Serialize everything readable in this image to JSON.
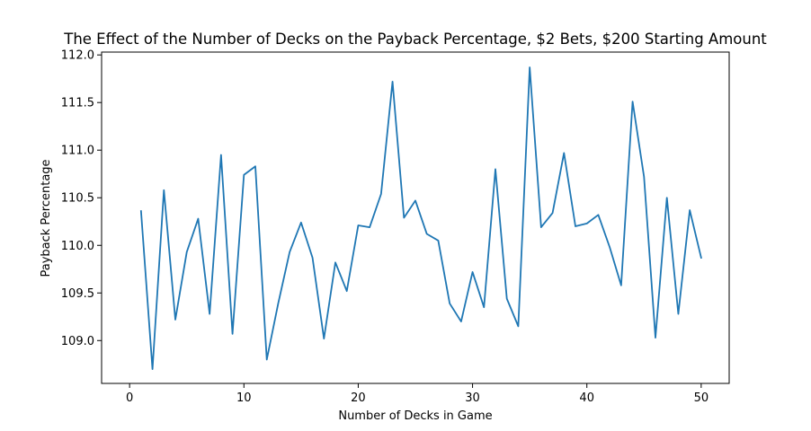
{
  "chart_data": {
    "type": "line",
    "title": "The Effect of the Number of Decks on the Payback Percentage, $2 Bets, $200 Starting Amount",
    "xlabel": "Number of Decks in Game",
    "ylabel": "Payback Percentage",
    "xlim": [
      -2.45,
      52.45
    ],
    "ylim": [
      108.55,
      112.03
    ],
    "xticks": [
      0,
      10,
      20,
      30,
      40,
      50
    ],
    "yticks": [
      109.0,
      109.5,
      110.0,
      110.5,
      111.0,
      111.5,
      112.0
    ],
    "grid": false,
    "line_color": "#1f77b4",
    "series": [
      {
        "x": [
          1,
          2,
          3,
          4,
          5,
          6,
          7,
          8,
          9,
          10,
          11,
          12,
          13,
          14,
          15,
          16,
          17,
          18,
          19,
          20,
          21,
          22,
          23,
          24,
          25,
          26,
          27,
          28,
          29,
          30,
          31,
          32,
          33,
          34,
          35,
          36,
          37,
          38,
          39,
          40,
          41,
          42,
          43,
          44,
          45,
          46,
          47,
          48,
          49,
          50
        ],
        "values": [
          110.36,
          108.7,
          110.58,
          109.22,
          109.93,
          110.28,
          109.28,
          110.95,
          109.07,
          110.74,
          110.83,
          108.8,
          109.39,
          109.93,
          110.24,
          109.87,
          109.02,
          109.82,
          109.52,
          110.21,
          110.19,
          110.54,
          111.72,
          110.29,
          110.47,
          110.12,
          110.05,
          109.39,
          109.2,
          109.72,
          109.35,
          110.8,
          109.44,
          109.15,
          111.87,
          110.19,
          110.34,
          110.97,
          110.2,
          110.23,
          110.32,
          109.98,
          109.58,
          111.51,
          110.72,
          109.03,
          110.5,
          109.28,
          110.37,
          109.87
        ]
      }
    ]
  }
}
